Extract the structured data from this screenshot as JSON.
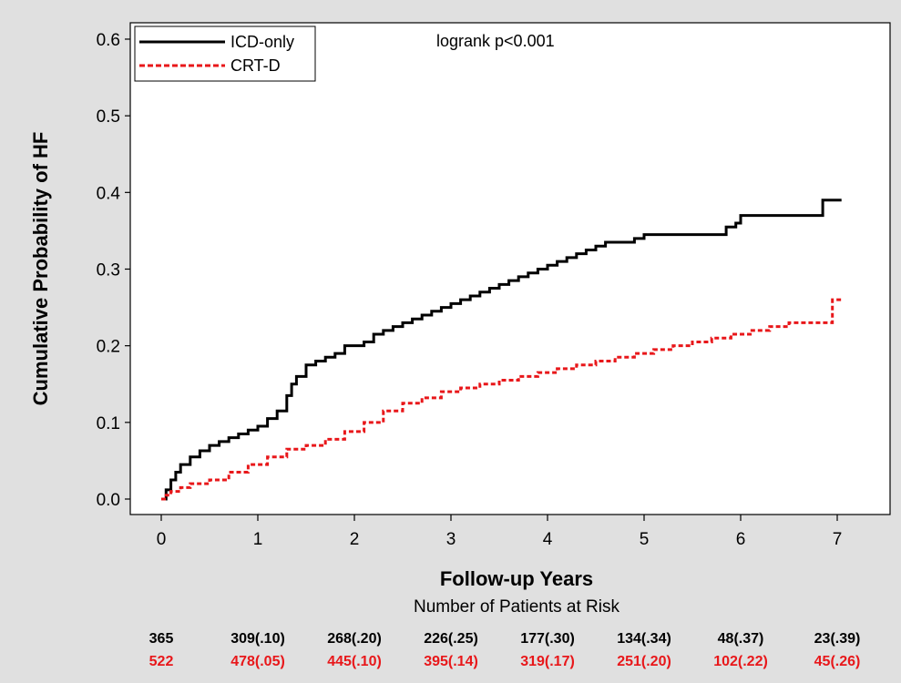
{
  "chart_data": {
    "type": "line",
    "step": true,
    "title": "",
    "xlabel": "Follow-up Years",
    "ylabel": "Cumulative Probability of HF",
    "xlim": [
      0,
      7.5
    ],
    "ylim": [
      0,
      0.6
    ],
    "x_ticks": [
      "0",
      "1",
      "2",
      "3",
      "4",
      "5",
      "6",
      "7"
    ],
    "y_ticks": [
      "0.0",
      "0.1",
      "0.2",
      "0.3",
      "0.4",
      "0.5",
      "0.6"
    ],
    "grid": false,
    "legend_position": "top-left",
    "annotation": "logrank p<0.001",
    "series": [
      {
        "name": "ICD-only",
        "color": "#000000",
        "style": "solid",
        "x": [
          0,
          0.05,
          0.1,
          0.15,
          0.2,
          0.3,
          0.4,
          0.5,
          0.6,
          0.7,
          0.8,
          0.9,
          1.0,
          1.1,
          1.2,
          1.3,
          1.35,
          1.4,
          1.5,
          1.6,
          1.7,
          1.8,
          1.9,
          2.0,
          2.1,
          2.2,
          2.3,
          2.4,
          2.5,
          2.6,
          2.7,
          2.8,
          2.9,
          3.0,
          3.1,
          3.2,
          3.3,
          3.4,
          3.5,
          3.6,
          3.7,
          3.8,
          3.9,
          4.0,
          4.1,
          4.2,
          4.3,
          4.4,
          4.5,
          4.6,
          4.7,
          4.8,
          4.9,
          5.0,
          5.5,
          5.85,
          5.95,
          6.0,
          6.5,
          6.85,
          6.95
        ],
        "y": [
          0,
          0.012,
          0.025,
          0.035,
          0.045,
          0.055,
          0.063,
          0.07,
          0.075,
          0.08,
          0.085,
          0.09,
          0.095,
          0.105,
          0.115,
          0.135,
          0.15,
          0.16,
          0.175,
          0.18,
          0.185,
          0.19,
          0.2,
          0.2,
          0.205,
          0.215,
          0.22,
          0.225,
          0.23,
          0.235,
          0.24,
          0.245,
          0.25,
          0.255,
          0.26,
          0.265,
          0.27,
          0.275,
          0.28,
          0.285,
          0.29,
          0.295,
          0.3,
          0.305,
          0.31,
          0.315,
          0.32,
          0.325,
          0.33,
          0.335,
          0.335,
          0.335,
          0.34,
          0.345,
          0.345,
          0.355,
          0.36,
          0.37,
          0.37,
          0.39,
          0.39
        ]
      },
      {
        "name": "CRT-D",
        "color": "#e8171a",
        "style": "dashed",
        "x": [
          0,
          0.05,
          0.1,
          0.2,
          0.3,
          0.5,
          0.7,
          0.9,
          1.1,
          1.3,
          1.5,
          1.7,
          1.9,
          2.1,
          2.3,
          2.5,
          2.7,
          2.9,
          3.1,
          3.3,
          3.5,
          3.7,
          3.9,
          4.1,
          4.3,
          4.5,
          4.7,
          4.9,
          5.1,
          5.3,
          5.5,
          5.7,
          5.9,
          6.1,
          6.3,
          6.5,
          6.7,
          6.9,
          6.95
        ],
        "y": [
          0,
          0.005,
          0.01,
          0.015,
          0.02,
          0.025,
          0.035,
          0.045,
          0.055,
          0.065,
          0.07,
          0.078,
          0.088,
          0.1,
          0.115,
          0.125,
          0.132,
          0.14,
          0.145,
          0.15,
          0.155,
          0.16,
          0.165,
          0.17,
          0.175,
          0.18,
          0.185,
          0.19,
          0.195,
          0.2,
          0.205,
          0.21,
          0.215,
          0.22,
          0.225,
          0.23,
          0.23,
          0.23,
          0.26
        ]
      }
    ],
    "risk_table": {
      "title": "Number of Patients at Risk",
      "x": [
        0,
        1,
        2,
        3,
        4,
        5,
        6,
        7
      ],
      "rows": [
        {
          "series": "ICD-only",
          "values": [
            "365",
            "309(.10)",
            "268(.20)",
            "226(.25)",
            "177(.30)",
            "134(.34)",
            "48(.37)",
            "23(.39)"
          ]
        },
        {
          "series": "CRT-D",
          "values": [
            "522",
            "478(.05)",
            "445(.10)",
            "395(.14)",
            "319(.17)",
            "251(.20)",
            "102(.22)",
            "45(.26)"
          ]
        }
      ]
    }
  }
}
